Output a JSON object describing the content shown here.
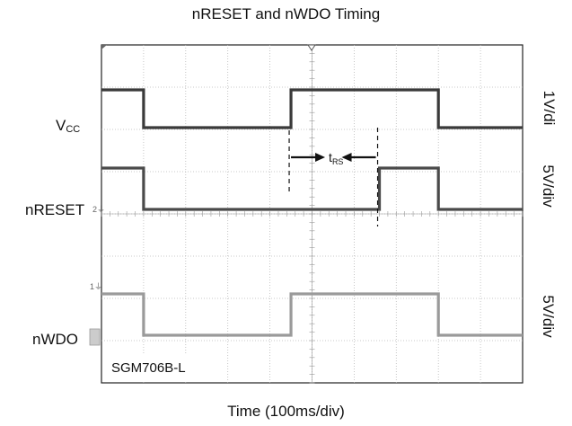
{
  "chart_data": {
    "type": "line",
    "title": "nRESET and nWDO Timing",
    "xlabel": "Time (100ms/div)",
    "x_divisions": 10,
    "y_divisions": 8,
    "x_unit": "div",
    "channels": [
      {
        "name_main": "V",
        "name_sub": "CC",
        "scale": "1V/di",
        "low": "low",
        "color": "#3a3a3a",
        "steps": [
          [
            0,
            1
          ],
          [
            1.0,
            1
          ],
          [
            1.0,
            0
          ],
          [
            4.5,
            0
          ],
          [
            4.5,
            1
          ],
          [
            8.0,
            1
          ],
          [
            8.0,
            0
          ],
          [
            10,
            0
          ]
        ]
      },
      {
        "name": "nRESET",
        "scale": "5V/div",
        "color": "#4a4a4a",
        "steps": [
          [
            0,
            1
          ],
          [
            1.0,
            1
          ],
          [
            1.0,
            0
          ],
          [
            6.6,
            0
          ],
          [
            6.6,
            1
          ],
          [
            8.0,
            1
          ],
          [
            8.0,
            0
          ],
          [
            10,
            0
          ]
        ]
      },
      {
        "name": "nWDO",
        "scale": "5V/div",
        "color": "#9a9a9a",
        "steps": [
          [
            0,
            1
          ],
          [
            1.0,
            1
          ],
          [
            1.0,
            0
          ],
          [
            4.5,
            0
          ],
          [
            4.5,
            1
          ],
          [
            8.0,
            1
          ],
          [
            8.0,
            0
          ],
          [
            10,
            0
          ]
        ]
      }
    ],
    "annotation": {
      "main": "t",
      "sub": "RS",
      "from_div": 4.5,
      "to_div": 6.6
    },
    "device_label": "SGM706B-L",
    "grid": true
  }
}
